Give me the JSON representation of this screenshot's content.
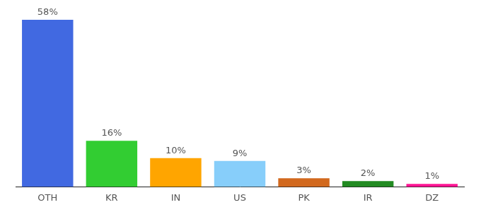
{
  "chart_data": {
    "type": "bar",
    "categories": [
      "OTH",
      "KR",
      "IN",
      "US",
      "PK",
      "IR",
      "DZ"
    ],
    "values": [
      58,
      16,
      10,
      9,
      3,
      2,
      1
    ],
    "value_labels": [
      "58%",
      "16%",
      "10%",
      "9%",
      "3%",
      "2%",
      "1%"
    ],
    "colors": [
      "#4169e1",
      "#32cd32",
      "#ffa500",
      "#87cefa",
      "#d2691e",
      "#228b22",
      "#ff1493"
    ],
    "ylim": [
      0,
      58
    ],
    "grid": false,
    "data_labels": true,
    "tick_labels": "x"
  }
}
